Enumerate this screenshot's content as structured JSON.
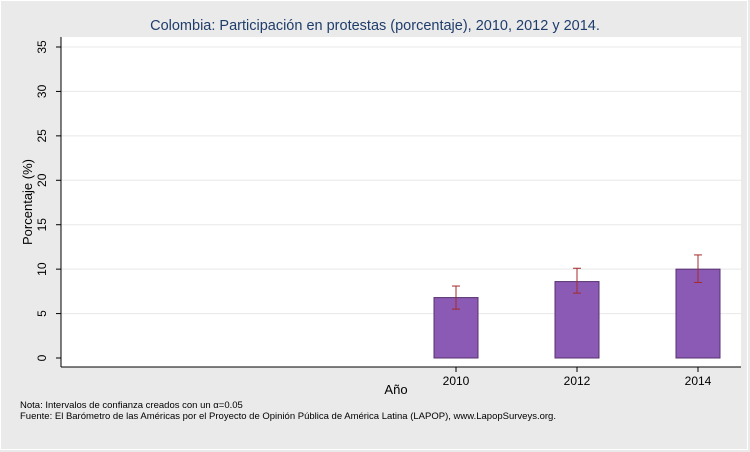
{
  "chart_data": {
    "type": "bar",
    "title": "Colombia: Participación en protestas (porcentaje), 2010, 2012 y 2014.",
    "xlabel": "Año",
    "ylabel": "Porcentaje (%)",
    "ylim": [
      0,
      35
    ],
    "yticks": [
      0,
      5,
      10,
      15,
      20,
      25,
      30,
      35
    ],
    "categories": [
      "2010",
      "2012",
      "2014"
    ],
    "values": [
      6.8,
      8.6,
      10.0
    ],
    "ci_low": [
      5.5,
      7.3,
      8.5
    ],
    "ci_high": [
      8.1,
      10.1,
      11.6
    ],
    "grid": true,
    "bar_color": "#8b5ab4",
    "bar_border": "#55306e",
    "errorbar_color": "#a52a2a",
    "grid_color": "#e8e8e8",
    "title_color": "#1f3d6b"
  },
  "notes": {
    "ci_note_prefix": "Nota: Intervalos de confianza creados con un ",
    "ci_note_alpha": "α",
    "ci_note_suffix": "=0.05",
    "source": "Fuente: El Barómetro de las Américas por el Proyecto de Opinión Pública de América Latina (LAPOP), www.LapopSurveys.org."
  }
}
